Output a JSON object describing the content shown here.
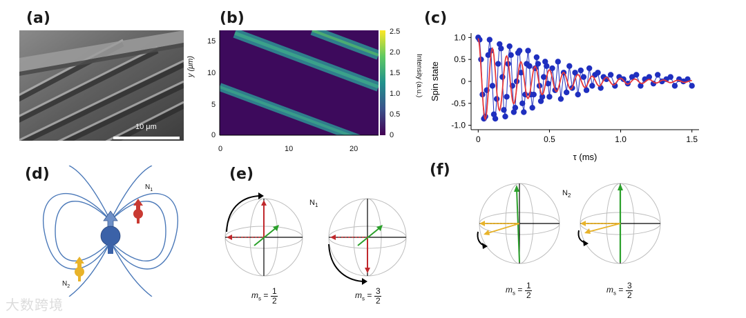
{
  "panel_labels": {
    "a": "(a)",
    "b": "(b)",
    "c": "(c)",
    "d": "(d)",
    "e": "(e)",
    "f": "(f)"
  },
  "panel_a": {
    "scale_bar_label": "10 μm"
  },
  "panel_b": {
    "ylabel": "y (μm)",
    "y_ticks": [
      "15",
      "10",
      "5",
      "0"
    ],
    "x_ticks": [
      "0",
      "10",
      "20"
    ],
    "colorbar_label": "Intensity (a.u.)",
    "colorbar_ticks": [
      "2.5",
      "2.0",
      "1.5",
      "1.0",
      "0.5",
      "0"
    ]
  },
  "chart_data": {
    "type": "scatter",
    "xlabel": "τ (ms)",
    "ylabel": "Spin state",
    "xlim": [
      -0.05,
      1.55
    ],
    "ylim": [
      -1.1,
      1.1
    ],
    "x_ticks": [
      "0",
      "0.5",
      "1.0",
      "1.5"
    ],
    "y_ticks": [
      "1.0",
      "0.5",
      "0",
      "-0.5",
      "-1.0"
    ],
    "colors": {
      "points": "#1f2fbf",
      "fit": "#e8383a"
    },
    "series": [
      {
        "kind": "points",
        "x": [
          0.0,
          0.01,
          0.02,
          0.03,
          0.04,
          0.05,
          0.06,
          0.07,
          0.08,
          0.09,
          0.1,
          0.11,
          0.12,
          0.13,
          0.14,
          0.15,
          0.16,
          0.17,
          0.18,
          0.19,
          0.2,
          0.21,
          0.22,
          0.23,
          0.24,
          0.25,
          0.26,
          0.27,
          0.28,
          0.29,
          0.3,
          0.31,
          0.32,
          0.33,
          0.34,
          0.35,
          0.36,
          0.37,
          0.38,
          0.39,
          0.4,
          0.41,
          0.42,
          0.43,
          0.44,
          0.45,
          0.46,
          0.47,
          0.48,
          0.49,
          0.5,
          0.52,
          0.54,
          0.56,
          0.58,
          0.6,
          0.62,
          0.64,
          0.66,
          0.68,
          0.7,
          0.72,
          0.74,
          0.76,
          0.78,
          0.8,
          0.82,
          0.84,
          0.86,
          0.88,
          0.9,
          0.93,
          0.96,
          0.99,
          1.02,
          1.05,
          1.08,
          1.11,
          1.14,
          1.17,
          1.2,
          1.23,
          1.26,
          1.29,
          1.32,
          1.35,
          1.38,
          1.41,
          1.44,
          1.47,
          1.5
        ],
        "y": [
          1.0,
          0.95,
          0.5,
          -0.3,
          -0.85,
          -0.8,
          -0.2,
          0.6,
          0.95,
          0.7,
          -0.1,
          -0.75,
          -0.85,
          -0.4,
          0.4,
          0.85,
          0.75,
          0.1,
          -0.65,
          -0.8,
          -0.35,
          0.4,
          0.8,
          0.6,
          -0.1,
          -0.7,
          -0.6,
          0.0,
          0.65,
          0.7,
          0.2,
          -0.5,
          -0.7,
          -0.3,
          0.4,
          0.7,
          0.35,
          -0.3,
          -0.6,
          -0.3,
          0.3,
          0.55,
          0.4,
          -0.1,
          -0.45,
          -0.35,
          0.1,
          0.45,
          0.35,
          -0.05,
          -0.35,
          0.3,
          -0.2,
          0.45,
          -0.4,
          0.2,
          -0.25,
          0.35,
          -0.15,
          0.2,
          -0.3,
          0.25,
          0.1,
          -0.2,
          0.3,
          -0.1,
          0.15,
          0.2,
          -0.15,
          0.1,
          0.05,
          0.15,
          -0.1,
          0.1,
          0.05,
          -0.05,
          0.1,
          0.15,
          -0.1,
          0.05,
          0.1,
          -0.05,
          0.15,
          0.0,
          0.05,
          0.1,
          -0.1,
          0.05,
          0.0,
          0.05,
          -0.1
        ]
      },
      {
        "kind": "fit",
        "name": ""
      }
    ]
  },
  "panel_d": {
    "label_n1": "N",
    "label_n1_sub": "1",
    "label_n2": "N",
    "label_n2_sub": "2"
  },
  "panel_e": {
    "label_n": "N",
    "label_n_sub": "1",
    "ms_left": {
      "m": "m",
      "sub": "s",
      "num": "1",
      "den": "2"
    },
    "ms_right": {
      "m": "m",
      "sub": "s",
      "num": "3",
      "den": "2"
    }
  },
  "panel_f": {
    "label_n": "N",
    "label_n_sub": "2",
    "ms_left": {
      "m": "m",
      "sub": "s",
      "num": "1",
      "den": "2"
    },
    "ms_right": {
      "m": "m",
      "sub": "s",
      "num": "3",
      "den": "2"
    }
  },
  "watermark": "大数跨境"
}
